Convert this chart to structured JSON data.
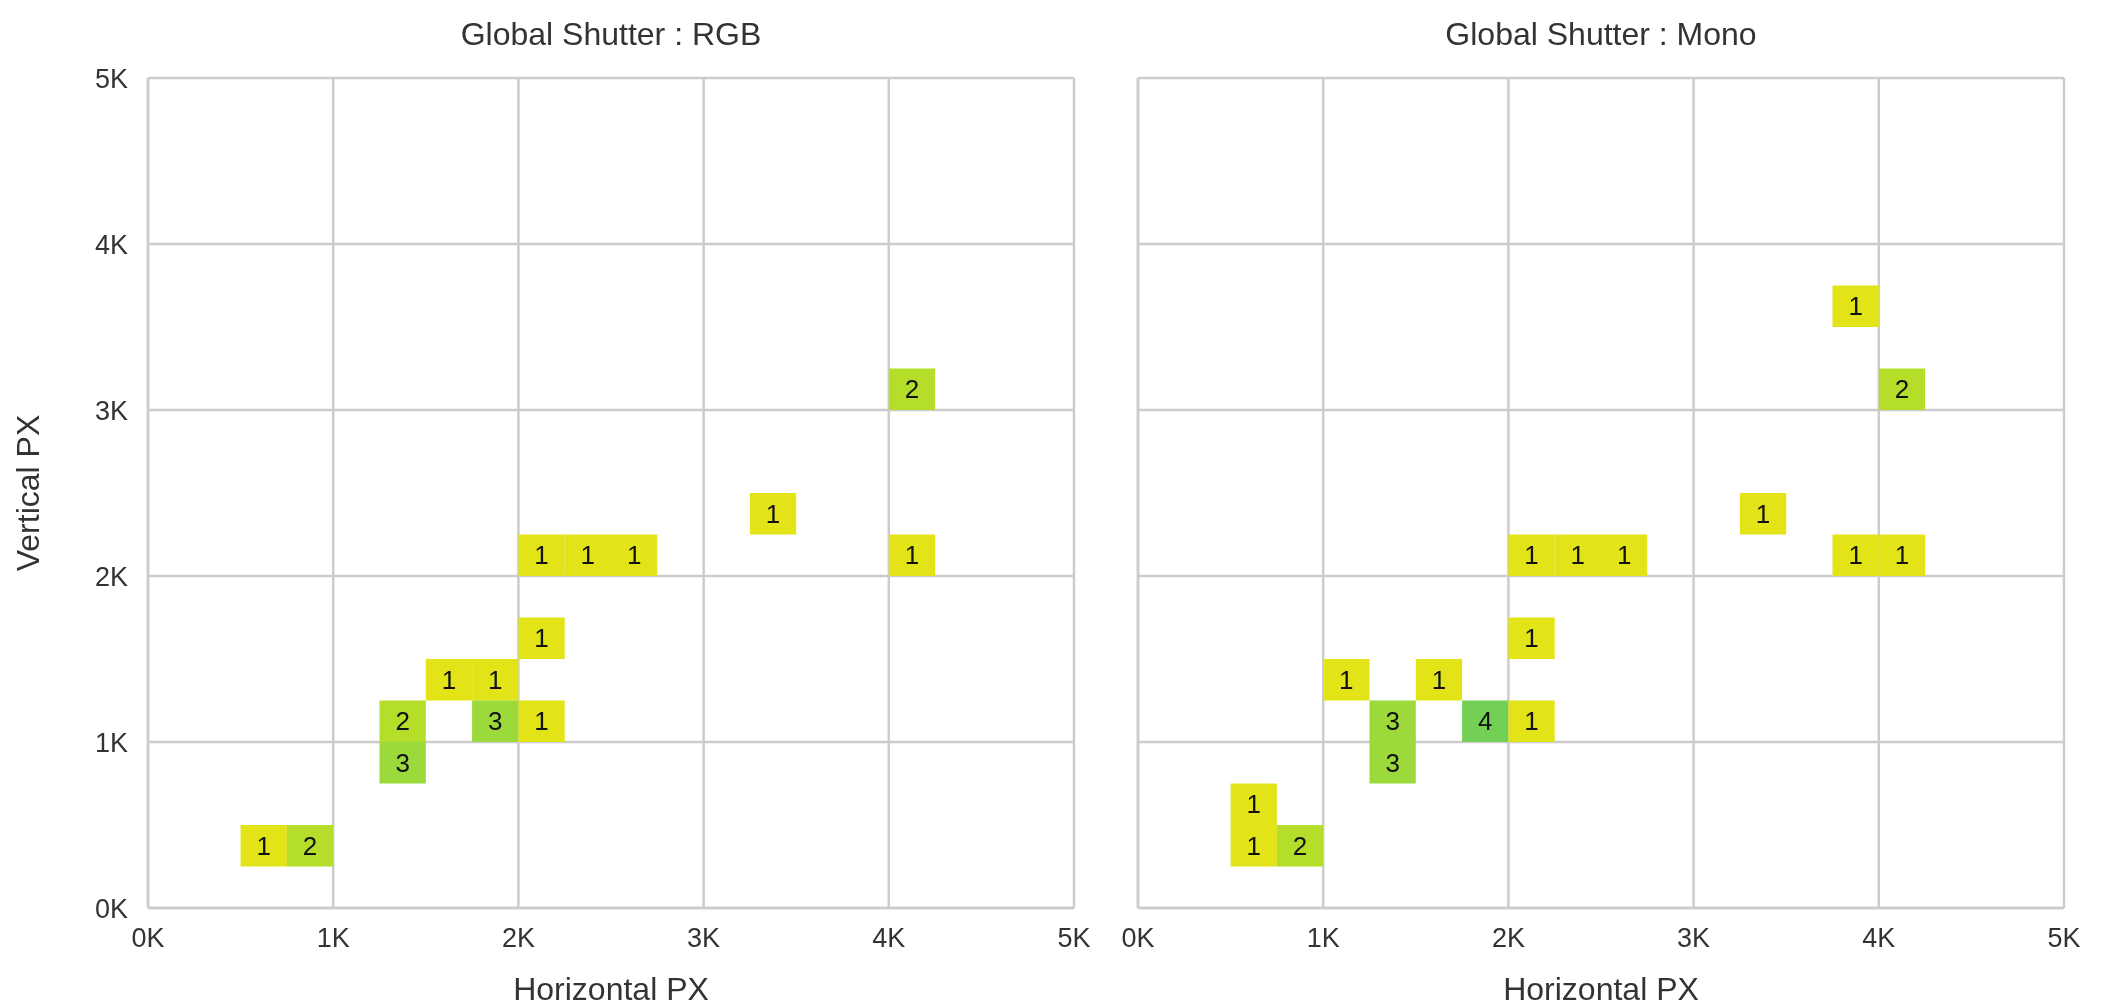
{
  "chart_data": [
    {
      "type": "heatmap",
      "title": "Global Shutter : RGB",
      "xlabel": "Horizontal PX",
      "ylabel": "Vertical PX",
      "x": [
        625,
        875,
        1375,
        1625,
        1875,
        2125,
        2375,
        2625,
        3375,
        4125
      ],
      "y": [
        3125,
        2375,
        2125,
        1625,
        1375,
        1125,
        875,
        375
      ],
      "xlim": [
        0,
        5000
      ],
      "ylim": [
        0,
        5000
      ],
      "xticks": [
        {
          "value": 0,
          "label": "0K"
        },
        {
          "value": 1000,
          "label": "1K"
        },
        {
          "value": 2000,
          "label": "2K"
        },
        {
          "value": 3000,
          "label": "3K"
        },
        {
          "value": 4000,
          "label": "4K"
        },
        {
          "value": 5000,
          "label": "5K"
        }
      ],
      "yticks": [
        {
          "value": 0,
          "label": "0K"
        },
        {
          "value": 1000,
          "label": "1K"
        },
        {
          "value": 2000,
          "label": "2K"
        },
        {
          "value": 3000,
          "label": "3K"
        },
        {
          "value": 4000,
          "label": "4K"
        },
        {
          "value": 5000,
          "label": "5K"
        }
      ],
      "grid": true,
      "data_labels": true,
      "colors": [
        "#e2e418",
        "#b5de2b",
        "#9cd93b"
      ],
      "cells": [
        [
          null,
          null,
          null,
          null,
          null,
          null,
          null,
          null,
          null,
          2
        ],
        [
          null,
          null,
          null,
          null,
          null,
          null,
          null,
          null,
          1,
          null
        ],
        [
          null,
          null,
          null,
          null,
          null,
          1,
          1,
          1,
          null,
          1
        ],
        [
          null,
          null,
          null,
          null,
          null,
          1,
          null,
          null,
          null,
          null
        ],
        [
          null,
          null,
          null,
          1,
          1,
          null,
          null,
          null,
          null,
          null
        ],
        [
          null,
          null,
          2,
          null,
          3,
          1,
          null,
          null,
          null,
          null
        ],
        [
          null,
          null,
          3,
          null,
          null,
          null,
          null,
          null,
          null,
          null
        ],
        [
          1,
          2,
          null,
          null,
          null,
          null,
          null,
          null,
          null,
          null
        ]
      ]
    },
    {
      "type": "heatmap",
      "title": "Global Shutter : Mono",
      "xlabel": "Horizontal PX",
      "tick_labels": "x",
      "x": [
        625,
        875,
        1125,
        1375,
        1625,
        1875,
        2125,
        2375,
        2625,
        3375,
        3875,
        4125
      ],
      "y": [
        3625,
        3125,
        2375,
        2125,
        1625,
        1375,
        1125,
        875,
        625,
        375
      ],
      "xlim": [
        0,
        5000
      ],
      "ylim": [
        0,
        5000
      ],
      "xticks": [
        {
          "value": 0,
          "label": "0K"
        },
        {
          "value": 1000,
          "label": "1K"
        },
        {
          "value": 2000,
          "label": "2K"
        },
        {
          "value": 3000,
          "label": "3K"
        },
        {
          "value": 4000,
          "label": "4K"
        },
        {
          "value": 5000,
          "label": "5K"
        }
      ],
      "yticks": [
        0,
        1000,
        2000,
        3000,
        4000,
        5000
      ],
      "grid": true,
      "data_labels": true,
      "colors": [
        "#e2e418",
        "#b5de2b",
        "#9cd93b",
        "#74d055"
      ],
      "cells": [
        [
          null,
          null,
          null,
          null,
          null,
          null,
          null,
          null,
          null,
          null,
          1,
          null
        ],
        [
          null,
          null,
          null,
          null,
          null,
          null,
          null,
          null,
          null,
          null,
          null,
          2
        ],
        [
          null,
          null,
          null,
          null,
          null,
          null,
          null,
          null,
          null,
          1,
          null,
          null
        ],
        [
          null,
          null,
          null,
          null,
          null,
          null,
          1,
          1,
          1,
          null,
          1,
          1
        ],
        [
          null,
          null,
          null,
          null,
          null,
          null,
          1,
          null,
          null,
          null,
          null,
          null
        ],
        [
          null,
          null,
          1,
          null,
          1,
          null,
          null,
          null,
          null,
          null,
          null,
          null
        ],
        [
          null,
          null,
          null,
          3,
          null,
          4,
          1,
          null,
          null,
          null,
          null,
          null
        ],
        [
          null,
          null,
          null,
          3,
          null,
          null,
          null,
          null,
          null,
          null,
          null,
          null
        ],
        [
          1,
          null,
          null,
          null,
          null,
          null,
          null,
          null,
          null,
          null,
          null,
          null
        ],
        [
          1,
          2,
          null,
          null,
          null,
          null,
          null,
          null,
          null,
          null,
          null,
          null
        ]
      ]
    }
  ]
}
